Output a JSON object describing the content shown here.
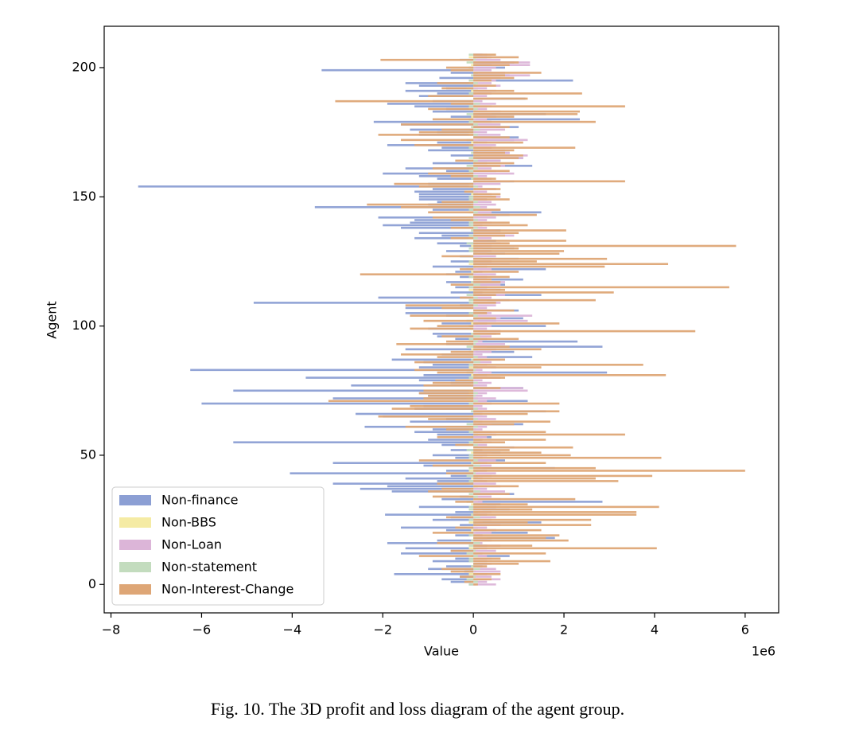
{
  "chart_data": {
    "type": "barh",
    "caption": "Fig. 10.  The 3D profit and loss diagram of the agent group.",
    "xlabel": "Value",
    "ylabel": "Agent",
    "x_offset_label": "1e6",
    "xlim": [
      -8.15,
      6.74
    ],
    "xticks": [
      {
        "value": -8,
        "label": "−8"
      },
      {
        "value": -6,
        "label": "−6"
      },
      {
        "value": -4,
        "label": "−4"
      },
      {
        "value": -2,
        "label": "−2"
      },
      0,
      2,
      4,
      6
    ],
    "ylim": [
      -11,
      216
    ],
    "yticks": [
      0,
      50,
      100,
      150,
      200
    ],
    "legend": "lower left",
    "series": [
      {
        "name": "Non-finance",
        "color": "#8c9fd4",
        "values": [
          -0.1,
          -0.5,
          -0.7,
          -0.3,
          -1.75,
          -0.2,
          -1.0,
          -0.6,
          0.3,
          -0.9,
          -0.4,
          0.8,
          -1.6,
          -0.5,
          -1.5,
          0.3,
          -1.9,
          -0.8,
          1.8,
          -0.4,
          1.2,
          -0.6,
          -1.6,
          -0.3,
          1.5,
          -0.9,
          -0.5,
          -1.95,
          -0.4,
          0.8,
          -1.2,
          0.6,
          2.85,
          -0.7,
          -0.3,
          0.9,
          -1.8,
          -2.5,
          -1.9,
          -3.1,
          -0.8,
          -1.5,
          -0.5,
          -4.05,
          -0.6,
          1.8,
          -1.1,
          -3.1,
          0.7,
          -0.4,
          -0.9,
          0.6,
          -0.5,
          0.9,
          -0.7,
          -5.3,
          -1.0,
          0.4,
          -0.8,
          -1.3,
          -0.9,
          -2.4,
          1.1,
          -1.4,
          -0.6,
          -2.0,
          -2.6,
          1.6,
          -1.3,
          -1.1,
          -6.0,
          1.2,
          -3.1,
          -1.0,
          -1.2,
          -5.3,
          1.1,
          -2.7,
          -0.5,
          -1.2,
          -3.7,
          -1.1,
          2.95,
          -6.25,
          -1.2,
          -0.9,
          -1.1,
          -1.8,
          1.3,
          -0.7,
          0.9,
          -1.5,
          2.85,
          -0.6,
          2.3,
          -0.4,
          -0.8,
          -0.9,
          0.6,
          -1.0,
          1.6,
          -0.7,
          0.5,
          1.1,
          -0.6,
          -1.5,
          1.0,
          -1.5,
          -0.3,
          -4.85,
          0.8,
          -2.1,
          1.5,
          -0.5,
          0.6,
          -0.4,
          0.7,
          -0.6,
          1.1,
          -0.3,
          -0.6,
          -0.4,
          1.6,
          -0.9,
          0.8,
          -0.5,
          1.0,
          -0.3,
          0.7,
          -0.6,
          0.9,
          -0.3,
          -0.8,
          0.5,
          -1.3,
          -0.7,
          -1.2,
          0.6,
          -1.6,
          -2.0,
          -1.4,
          -1.3,
          -2.1,
          0.8,
          1.5,
          -0.9,
          -3.5,
          -1.0,
          -0.8,
          -1.2,
          -1.2,
          -1.2,
          -1.3,
          -0.9,
          -7.4,
          -1.0,
          0.9,
          -0.8,
          -1.2,
          -2.0,
          -0.6,
          -1.5,
          1.3,
          -0.9,
          0.6,
          1.1,
          -0.5,
          0.8,
          -1.0,
          -0.7,
          -1.9,
          -0.8,
          0.9,
          1.0,
          -1.2,
          -0.8,
          -1.4,
          1.0,
          -1.6,
          -2.2,
          2.35,
          -0.5,
          1.6,
          -0.9,
          -0.6,
          -1.3,
          -1.9,
          -0.9,
          1.15,
          -1.2,
          -0.8,
          -1.5,
          -0.6,
          -1.2,
          -1.5,
          2.2,
          -0.75,
          0.8,
          -0.5,
          -3.35,
          0.7,
          0.4,
          0.9,
          -0.3,
          0.3,
          0.2
        ]
      },
      {
        "name": "Non-BBS",
        "color": "#f5eba4",
        "values": [
          0.05,
          -0.05,
          0.1,
          0.05,
          -0.1,
          0.05,
          0.05,
          -0.05,
          0.1,
          -0.05,
          0.05,
          -0.05,
          0.1,
          0.05,
          -0.1,
          0.05,
          0.05,
          -0.05,
          0.1,
          -0.05,
          0.05,
          -0.05,
          0.1,
          0.05,
          -0.1,
          0.05,
          0.05,
          -0.05,
          0.1,
          -0.05,
          0.05,
          -0.05,
          0.1,
          0.05,
          -0.1,
          0.05,
          0.05,
          -0.05,
          0.1,
          -0.05,
          0.05,
          -0.05,
          0.1,
          0.05,
          -0.1,
          0.05,
          0.05,
          -0.05,
          0.1,
          -0.05,
          0.05,
          -0.05,
          0.1,
          0.05,
          -0.1,
          0.05,
          0.05,
          -0.05,
          0.1,
          -0.05,
          0.05,
          -0.05,
          0.1,
          0.05,
          -0.1,
          0.05,
          0.05,
          -0.05,
          0.1,
          -0.05,
          0.05,
          -0.05,
          0.1,
          0.05,
          -0.1,
          0.05,
          0.05,
          -0.05,
          0.1,
          -0.05,
          0.05,
          -0.05,
          0.1,
          0.05,
          -0.1,
          0.05,
          0.05,
          -0.05,
          0.1,
          -0.05,
          0.05,
          -0.05,
          0.1,
          0.05,
          -0.1,
          0.05,
          0.05,
          -0.05,
          0.1,
          -0.05,
          0.05,
          -0.05,
          0.1,
          0.05,
          -0.1,
          0.05,
          0.05,
          -0.05,
          0.1,
          -0.05,
          0.05,
          -0.05,
          0.1,
          0.05,
          -0.1,
          0.05,
          0.05,
          -0.05,
          0.1,
          -0.05,
          0.05,
          -0.05,
          0.1,
          0.05,
          -0.1,
          0.05,
          0.05,
          -0.05,
          0.1,
          -0.05,
          0.05,
          -0.05,
          0.1,
          0.05,
          -0.1,
          0.05,
          0.05,
          -0.05,
          0.1,
          -0.05,
          0.05,
          -0.05,
          0.1,
          0.05,
          -0.1,
          0.05,
          0.05,
          -0.05,
          0.1,
          -0.05,
          0.05,
          -0.05,
          0.1,
          0.05,
          -0.1,
          0.05,
          0.05,
          -0.05,
          0.1,
          -0.05,
          0.05,
          -0.05,
          0.1,
          0.05,
          -0.1,
          0.05,
          0.05,
          -0.05,
          0.1,
          -0.05,
          0.05,
          -0.05,
          0.1,
          0.05,
          -0.1,
          0.05,
          0.05,
          -0.05,
          0.1,
          -0.05,
          0.05,
          -0.05,
          0.1,
          0.05,
          -0.1,
          0.05,
          0.05,
          -0.05,
          0.1,
          -0.05,
          0.05,
          -0.05,
          0.1,
          0.05,
          -0.1,
          0.05,
          0.05,
          -0.05,
          0.1,
          -0.05,
          0.05,
          -0.05,
          0.1,
          0.05,
          -0.1,
          0.05
        ]
      },
      {
        "name": "Non-Loan",
        "color": "#dcb5d8",
        "values": [
          0.5,
          0.3,
          0.6,
          0.4,
          0.3,
          0.6,
          0.5,
          0.2,
          0.4,
          0.3,
          0.4,
          0.3,
          0.2,
          0.5,
          0.3,
          0.6,
          0.2,
          0.4,
          0.3,
          0.2,
          0.4,
          0.5,
          0.3,
          0.6,
          0.2,
          0.4,
          0.5,
          0.3,
          0.4,
          0.2,
          0.5,
          0.3,
          0.2,
          0.6,
          0.4,
          0.7,
          0.7,
          0.3,
          0.6,
          0.5,
          0.3,
          0.2,
          0.4,
          0.5,
          0.3,
          0.2,
          0.4,
          0.3,
          0.5,
          0.2,
          0.3,
          0.4,
          0.2,
          0.5,
          0.3,
          0.4,
          0.2,
          0.3,
          0.5,
          0.4,
          0.2,
          0.3,
          0.4,
          0.2,
          0.5,
          0.3,
          0.2,
          0.4,
          0.3,
          0.2,
          0.4,
          0.3,
          0.5,
          0.2,
          0.3,
          1.2,
          1.1,
          0.3,
          0.4,
          0.2,
          0.6,
          0.3,
          0.4,
          0.2,
          0.5,
          0.3,
          0.4,
          0.6,
          0.3,
          0.2,
          0.4,
          0.5,
          0.3,
          0.7,
          0.2,
          0.3,
          0.4,
          0.5,
          0.6,
          0.3,
          0.4,
          0.3,
          1.2,
          0.6,
          1.3,
          0.4,
          0.8,
          0.3,
          0.5,
          0.6,
          0.3,
          0.4,
          0.7,
          0.2,
          0.5,
          0.3,
          0.6,
          0.7,
          0.4,
          0.3,
          0.5,
          0.2,
          0.4,
          0.3,
          0.6,
          0.4,
          0.2,
          0.5,
          0.3,
          0.4,
          0.2,
          0.4,
          0.6,
          0.3,
          0.4,
          0.9,
          0.6,
          0.5,
          0.3,
          0.2,
          0.4,
          0.3,
          0.5,
          0.2,
          0.4,
          0.6,
          0.3,
          0.5,
          0.4,
          0.3,
          0.6,
          0.4,
          0.3,
          0.5,
          0.2,
          0.6,
          0.8,
          0.4,
          0.3,
          0.9,
          0.5,
          0.4,
          0.7,
          0.3,
          0.6,
          1.1,
          1.2,
          0.8,
          0.7,
          0.4,
          0.5,
          0.3,
          1.2,
          0.4,
          0.6,
          0.3,
          0.7,
          0.5,
          0.6,
          0.4,
          0.3,
          0.5,
          0.4,
          0.6,
          0.3,
          0.4,
          0.5,
          0.2,
          0.6,
          0.3,
          0.4,
          0.5,
          0.3,
          0.6,
          0.4,
          0.5,
          0.6,
          1.25,
          0.7,
          0.4,
          0.5,
          1.25,
          1.25,
          0.6,
          0.4,
          0.3
        ]
      },
      {
        "name": "Non-statement",
        "color": "#c3dcbe",
        "values": [
          -0.1,
          0.1,
          -0.15,
          0.05,
          0.1,
          -0.1,
          0.15,
          -0.05,
          0.1,
          -0.1,
          -0.1,
          0.1,
          -0.15,
          0.05,
          0.1,
          -0.1,
          0.15,
          -0.05,
          0.1,
          -0.1,
          -0.1,
          0.1,
          -0.15,
          0.05,
          0.1,
          -0.1,
          0.15,
          -0.05,
          0.1,
          -0.1,
          -0.1,
          0.1,
          -0.15,
          0.05,
          0.1,
          -0.1,
          0.15,
          -0.05,
          0.1,
          -0.1,
          -0.1,
          0.1,
          -0.15,
          0.05,
          0.1,
          -0.1,
          0.15,
          -0.05,
          0.1,
          -0.1,
          -0.1,
          0.1,
          -0.15,
          0.05,
          0.1,
          -0.1,
          0.15,
          -0.05,
          0.1,
          -0.1,
          -0.1,
          0.1,
          -0.15,
          0.05,
          0.1,
          -0.1,
          0.15,
          -0.05,
          0.1,
          -0.1,
          -0.1,
          0.1,
          -0.15,
          0.05,
          0.1,
          -0.1,
          0.15,
          -0.05,
          0.1,
          -0.1,
          -0.1,
          0.1,
          -0.15,
          0.05,
          0.1,
          -0.1,
          0.15,
          -0.05,
          0.1,
          -0.1,
          -0.1,
          0.1,
          -0.15,
          0.05,
          0.1,
          -0.1,
          0.15,
          -0.05,
          0.1,
          -0.1,
          -0.1,
          0.1,
          -0.15,
          0.05,
          0.1,
          -0.1,
          0.15,
          -0.05,
          0.1,
          -0.1,
          -0.1,
          0.1,
          -0.15,
          0.05,
          0.1,
          -0.1,
          0.15,
          -0.05,
          0.1,
          -0.1,
          -0.1,
          0.1,
          -0.15,
          0.05,
          0.1,
          -0.1,
          0.15,
          -0.05,
          0.1,
          -0.1,
          -0.1,
          0.1,
          -0.15,
          0.05,
          0.1,
          -0.1,
          0.15,
          -0.05,
          0.1,
          -0.1,
          -0.1,
          0.1,
          -0.15,
          0.05,
          0.1,
          -0.1,
          0.15,
          -0.05,
          0.1,
          -0.1,
          -0.1,
          0.1,
          -0.15,
          0.05,
          0.1,
          -0.1,
          0.15,
          -0.05,
          0.1,
          -0.1,
          -0.1,
          0.1,
          -0.15,
          0.05,
          0.1,
          -0.1,
          0.15,
          -0.05,
          0.1,
          -0.1,
          -0.1,
          0.1,
          -0.15,
          0.05,
          0.1,
          -0.1,
          0.15,
          -0.05,
          0.1,
          -0.1,
          -0.1,
          0.1,
          -0.15,
          0.05,
          0.1,
          -0.1,
          0.15,
          -0.05,
          0.1,
          -0.1,
          -0.1,
          0.1,
          -0.15,
          0.05,
          0.1,
          -0.1,
          0.15,
          -0.05,
          0.1,
          -0.1,
          -0.1,
          0.1,
          -0.15,
          0.05,
          0.1,
          -0.1
        ]
      },
      {
        "name": "Non-Interest-Change",
        "color": "#dea676",
        "values": [
          0.1,
          -0.2,
          0.4,
          -0.3,
          0.6,
          -0.5,
          -0.7,
          0.3,
          1.0,
          1.7,
          0.6,
          -1.2,
          1.6,
          -0.5,
          4.05,
          1.3,
          -0.8,
          2.1,
          1.6,
          1.9,
          -0.9,
          1.5,
          -0.4,
          2.6,
          1.2,
          2.6,
          -0.6,
          3.6,
          3.6,
          1.3,
          4.1,
          1.2,
          -0.4,
          2.25,
          -0.9,
          0.8,
          -1.0,
          -0.7,
          1.0,
          -0.8,
          3.2,
          2.7,
          3.95,
          -0.6,
          6.0,
          2.7,
          -0.9,
          1.6,
          -1.2,
          4.15,
          2.15,
          1.5,
          0.8,
          2.2,
          -0.4,
          0.7,
          1.6,
          -0.8,
          3.35,
          1.6,
          -0.6,
          -1.5,
          0.9,
          1.7,
          -1.0,
          -2.1,
          1.2,
          1.9,
          -1.8,
          -1.4,
          1.9,
          -3.2,
          -1.1,
          -1.0,
          -1.2,
          -1.1,
          0.6,
          -1.1,
          -0.9,
          -0.4,
          0.7,
          4.25,
          -0.8,
          -1.3,
          1.5,
          3.75,
          -1.3,
          0.7,
          -0.8,
          -1.6,
          -0.5,
          1.5,
          0.8,
          -1.7,
          -0.6,
          1.0,
          -0.7,
          0.6,
          4.9,
          -1.4,
          -0.8,
          1.9,
          -1.1,
          0.5,
          -1.4,
          0.3,
          0.9,
          -0.7,
          -1.5,
          0.5,
          2.7,
          -0.3,
          0.5,
          3.1,
          0.7,
          5.65,
          -0.5,
          0.6,
          0.4,
          0.8,
          -2.5,
          1.0,
          -0.3,
          2.9,
          4.3,
          1.4,
          2.95,
          -0.7,
          1.9,
          2.0,
          1.0,
          5.8,
          0.8,
          2.05,
          -0.5,
          0.7,
          1.0,
          2.05,
          -0.5,
          1.2,
          0.8,
          -0.5,
          -0.9,
          1.4,
          -1.0,
          0.6,
          -1.6,
          -2.35,
          -0.7,
          0.8,
          0.5,
          0.6,
          -0.2,
          0.6,
          -1.2,
          -1.75,
          3.35,
          0.5,
          -0.5,
          -1.0,
          0.8,
          -0.9,
          0.6,
          0.9,
          -0.4,
          1.0,
          1.1,
          0.7,
          0.9,
          2.25,
          -1.3,
          1.1,
          -1.6,
          0.8,
          -2.1,
          -1.2,
          -0.7,
          0.8,
          -1.6,
          2.7,
          -0.9,
          0.9,
          2.3,
          2.35,
          -1.0,
          3.35,
          -0.5,
          -3.05,
          1.2,
          -1.0,
          2.4,
          0.9,
          -0.7,
          0.5,
          -0.8,
          0.4,
          0.9,
          0.7,
          1.5,
          -0.5,
          -0.6,
          0.8,
          1.0,
          -2.05,
          1.0,
          0.5
        ]
      }
    ]
  }
}
